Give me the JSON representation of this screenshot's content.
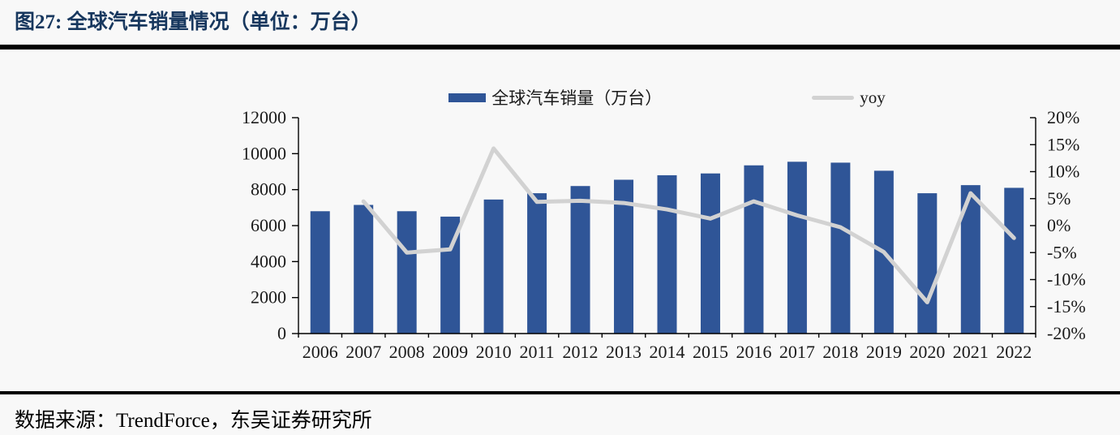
{
  "header": {
    "title": "图27:  全球汽车销量情况（单位：万台）"
  },
  "footer": {
    "source": "数据来源：TrendForce，东吴证券研究所"
  },
  "colors": {
    "bar": "#2f5597",
    "line": "#d2d2d2",
    "title": "#17375e",
    "axis": "#000000",
    "axis_text": "#1a1a1a",
    "background": "#f8f8f8"
  },
  "chart_data": {
    "type": "bar",
    "subtype": "bar+line combo, dual axis",
    "title": "全球汽车销量情况（单位：万台）",
    "categories": [
      "2006",
      "2007",
      "2008",
      "2009",
      "2010",
      "2011",
      "2012",
      "2013",
      "2014",
      "2015",
      "2016",
      "2017",
      "2018",
      "2019",
      "2020",
      "2021",
      "2022"
    ],
    "series": [
      {
        "name": "全球汽车销量（万台）",
        "type": "bar",
        "axis": "left",
        "values": [
          6800,
          7150,
          6800,
          6500,
          7450,
          7800,
          8200,
          8550,
          8800,
          8900,
          9350,
          9550,
          9500,
          9050,
          7800,
          8250,
          8100
        ]
      },
      {
        "name": "yoy",
        "type": "line",
        "axis": "right",
        "values": [
          null,
          4.5,
          -5.0,
          -4.4,
          14.3,
          4.4,
          4.6,
          4.2,
          3.0,
          1.3,
          4.5,
          1.9,
          -0.3,
          -4.9,
          -14.2,
          6.0,
          -2.3
        ]
      }
    ],
    "left_axis": {
      "min": 0,
      "max": 12000,
      "step": 2000,
      "ticks": [
        0,
        2000,
        4000,
        6000,
        8000,
        10000,
        12000
      ]
    },
    "right_axis": {
      "min": -20,
      "max": 20,
      "step": 5,
      "ticks": [
        20,
        15,
        10,
        5,
        0,
        -5,
        -10,
        -15,
        -20
      ],
      "suffix": "%"
    },
    "legend_position": "top",
    "grid": false
  }
}
